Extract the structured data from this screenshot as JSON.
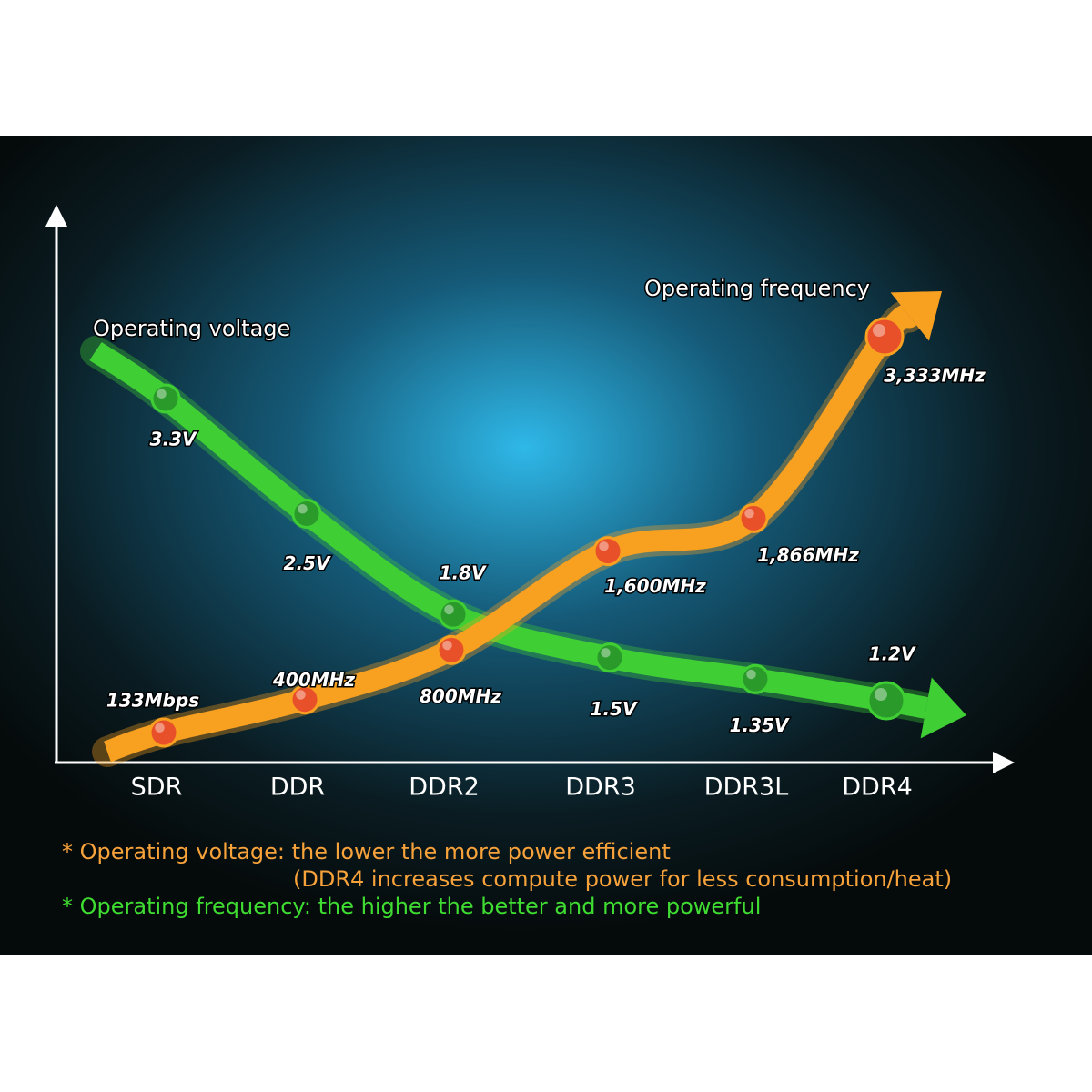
{
  "chart_data": {
    "type": "line",
    "categories": [
      "SDR",
      "DDR",
      "DDR2",
      "DDR3",
      "DDR3L",
      "DDR4"
    ],
    "series": [
      {
        "name": "Operating voltage",
        "color": "#3fcf34",
        "marker_color": "#2a9a2a",
        "values": [
          3.3,
          2.5,
          1.8,
          1.5,
          1.35,
          1.2
        ],
        "value_labels": [
          "3.3V",
          "2.5V",
          "1.8V",
          "1.5V",
          "1.35V",
          "1.2V"
        ]
      },
      {
        "name": "Operating frequency",
        "color": "#f8a020",
        "marker_color": "#e8502a",
        "values": [
          133,
          400,
          800,
          1600,
          1866,
          3333
        ],
        "value_labels": [
          "133Mbps",
          "400MHz",
          "800MHz",
          "1,600MHz",
          "1,866MHz",
          "3,333MHz"
        ]
      }
    ],
    "notes": [
      "* Operating voltage: the lower the more power efficient",
      "(DDR4 increases compute power for less consumption/heat)",
      "* Operating frequency: the higher the better and more powerful"
    ]
  }
}
